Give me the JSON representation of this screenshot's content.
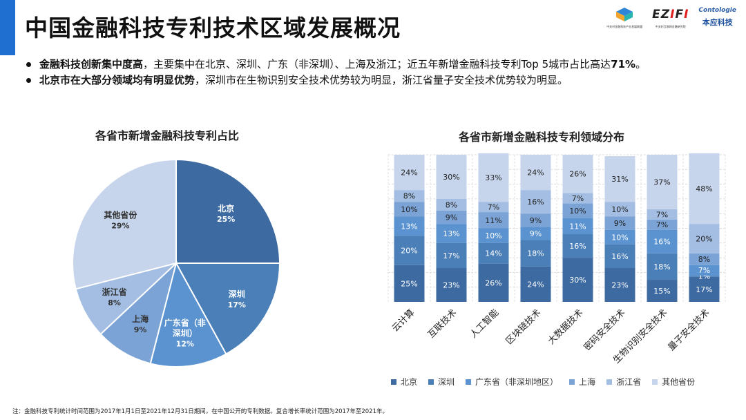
{
  "page": {
    "title": "中国金融科技专利技术区域发展概况",
    "bullets": [
      {
        "bold": "金融科技创新集中度高",
        "text": "，主要集中在北京、深圳、广东（非深圳）、上海及浙江；近五年新增金融科技专利Top 5城市占比高达",
        "highlight": "71%",
        "tail": "。"
      },
      {
        "bold": "北京市在大部分领域均有明显优势",
        "text": "，深圳市在生物识别安全技术优势较为明显，浙江省量子安全技术优势较为明显。",
        "highlight": "",
        "tail": ""
      }
    ],
    "footnote": "注：金融科技专利统计时间范围为2017年1月1日至2021年12月31日期间，在中国公开的专利数据。复合增长率统计范围为2017年至2021年。"
  },
  "logos": {
    "zgc_caption": "中关村金融科技产业发展联盟",
    "ezifi_prefix": "EZ",
    "ezifi_i1": "I",
    "ezifi_mid": "F",
    "ezifi_i2": "I",
    "ezifi_caption": "中关村互联网金融研究院",
    "benying_mark": "Contologie",
    "benying_label": "本应科技"
  },
  "colors": {
    "beijing": "#3d6aa1",
    "shenzhen": "#4a7fb8",
    "guangdong": "#5a93cf",
    "shanghai": "#7ba3d6",
    "zhejiang": "#a3bee2",
    "others": "#c6d5ec"
  },
  "chart_data": [
    {
      "type": "pie",
      "title": "各省市新增金融科技专利占比",
      "slices": [
        {
          "label": "北京",
          "value": 25,
          "pct": "25%",
          "color": "#3d6aa1"
        },
        {
          "label": "深圳",
          "value": 17,
          "pct": "17%",
          "color": "#4a7fb8"
        },
        {
          "label": "广东省（非深圳）",
          "value": 12,
          "pct": "12%",
          "color": "#5a93cf",
          "label_lines": [
            "广东省（非",
            "深圳）"
          ]
        },
        {
          "label": "上海",
          "value": 9,
          "pct": "9%",
          "color": "#7ba3d6"
        },
        {
          "label": "浙江省",
          "value": 8,
          "pct": "8%",
          "color": "#a3bee2"
        },
        {
          "label": "其他省份",
          "value": 29,
          "pct": "29%",
          "color": "#c6d5ec"
        }
      ]
    },
    {
      "type": "bar",
      "stacked": true,
      "percent": true,
      "title": "各省市新增金融科技专利领域分布",
      "categories": [
        "云计算",
        "互联技术",
        "人工智能",
        "区块链技术",
        "大数据技术",
        "密码安全技术",
        "生物识别安全技术",
        "量子安全技术"
      ],
      "ylim": [
        0,
        100
      ],
      "series": [
        {
          "name": "北京",
          "color": "#3d6aa1",
          "values": [
            25,
            23,
            26,
            24,
            30,
            23,
            15,
            17
          ]
        },
        {
          "name": "深圳",
          "color": "#4a7fb8",
          "values": [
            20,
            17,
            14,
            18,
            16,
            16,
            18,
            1
          ]
        },
        {
          "name": "广东省（非深圳地区）",
          "color": "#5a93cf",
          "values": [
            13,
            13,
            10,
            9,
            11,
            10,
            16,
            7
          ]
        },
        {
          "name": "上海",
          "color": "#7ba3d6",
          "values": [
            10,
            9,
            11,
            9,
            10,
            9,
            7,
            8
          ]
        },
        {
          "name": "浙江省",
          "color": "#a3bee2",
          "values": [
            8,
            8,
            7,
            16,
            7,
            10,
            7,
            20
          ]
        },
        {
          "name": "其他省份",
          "color": "#c6d5ec",
          "values": [
            24,
            30,
            33,
            24,
            26,
            31,
            37,
            48
          ]
        }
      ]
    }
  ]
}
